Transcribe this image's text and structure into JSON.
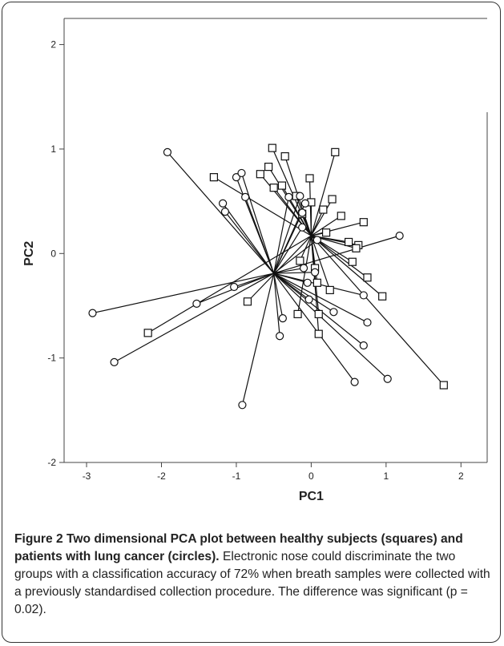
{
  "chart_data": {
    "type": "scatter",
    "xlabel": "PC1",
    "ylabel": "PC2",
    "xlim": [
      -3.3,
      2.35
    ],
    "ylim": [
      -2,
      2.25
    ],
    "xticks": [
      -3,
      -2,
      -1,
      0,
      1,
      2
    ],
    "yticks": [
      -2,
      -1,
      0,
      1,
      2
    ],
    "grid": false,
    "series": [
      {
        "name": "healthy subjects (squares)",
        "marker": "square",
        "centroid": [
          0,
          0.17
        ],
        "points": [
          [
            -0.52,
            1.01
          ],
          [
            -0.35,
            0.93
          ],
          [
            0.32,
            0.97
          ],
          [
            -0.57,
            0.83
          ],
          [
            -0.68,
            0.76
          ],
          [
            -1.3,
            0.73
          ],
          [
            -0.02,
            0.72
          ],
          [
            -0.39,
            0.65
          ],
          [
            -0.5,
            0.63
          ],
          [
            -0.2,
            0.55
          ],
          [
            0.28,
            0.52
          ],
          [
            0.0,
            0.49
          ],
          [
            0.16,
            0.42
          ],
          [
            -0.12,
            0.38
          ],
          [
            0.4,
            0.36
          ],
          [
            0.7,
            0.3
          ],
          [
            0.2,
            0.2
          ],
          [
            0.5,
            0.11
          ],
          [
            0.63,
            0.08
          ],
          [
            0.6,
            0.05
          ],
          [
            0.55,
            -0.08
          ],
          [
            0.05,
            -0.14
          ],
          [
            -0.15,
            -0.07
          ],
          [
            0.75,
            -0.23
          ],
          [
            0.95,
            -0.41
          ],
          [
            0.25,
            -0.35
          ],
          [
            0.08,
            -0.28
          ],
          [
            -0.85,
            -0.46
          ],
          [
            -0.18,
            -0.58
          ],
          [
            0.1,
            -0.58
          ],
          [
            0.1,
            -0.77
          ],
          [
            -2.18,
            -0.76
          ],
          [
            1.77,
            -1.26
          ]
        ]
      },
      {
        "name": "patients with lung cancer (circles)",
        "marker": "circle",
        "centroid": [
          -0.5,
          -0.19
        ],
        "points": [
          [
            -1.92,
            0.97
          ],
          [
            -1.0,
            0.73
          ],
          [
            -0.93,
            0.77
          ],
          [
            -0.88,
            0.54
          ],
          [
            -1.18,
            0.48
          ],
          [
            -1.15,
            0.4
          ],
          [
            -0.3,
            0.54
          ],
          [
            -0.15,
            0.55
          ],
          [
            -0.12,
            0.39
          ],
          [
            -0.08,
            0.48
          ],
          [
            -0.12,
            0.25
          ],
          [
            0.08,
            0.13
          ],
          [
            1.18,
            0.17
          ],
          [
            -0.1,
            -0.14
          ],
          [
            0.05,
            -0.18
          ],
          [
            -0.05,
            -0.28
          ],
          [
            0.7,
            -0.4
          ],
          [
            0.3,
            -0.56
          ],
          [
            0.75,
            -0.66
          ],
          [
            0.7,
            -0.88
          ],
          [
            1.02,
            -1.2
          ],
          [
            0.58,
            -1.23
          ],
          [
            -0.03,
            -0.44
          ],
          [
            -1.03,
            -0.32
          ],
          [
            -1.53,
            -0.48
          ],
          [
            -2.92,
            -0.57
          ],
          [
            -2.63,
            -1.04
          ],
          [
            -0.38,
            -0.62
          ],
          [
            -0.42,
            -0.79
          ],
          [
            -0.92,
            -1.45
          ]
        ]
      }
    ]
  },
  "caption": {
    "title": "Figure 2 Two dimensional PCA plot between healthy subjects (squares) and patients with lung cancer (circles).",
    "body": " Electronic nose could discriminate the two groups with a classification accuracy of 72% when breath samples were collected with a previously standardised collection procedure. The difference was significant (p = 0.02)."
  }
}
